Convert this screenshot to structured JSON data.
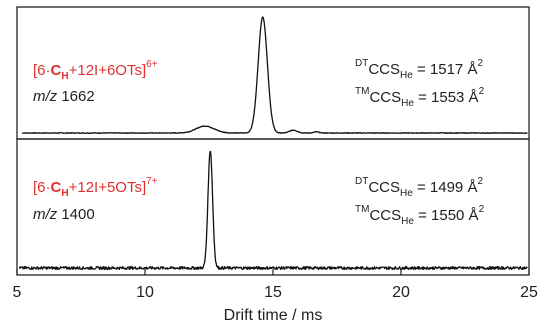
{
  "chart_data": {
    "type": "line",
    "xlabel": "Drift time / ms",
    "xlim": [
      5,
      25
    ],
    "x_ticks": [
      "5",
      "10",
      "15",
      "20",
      "25"
    ],
    "grid": false,
    "panels": [
      {
        "ion": {
          "prefix": "[6·",
          "bold": "C",
          "bold_sub": "H",
          "rest": "+12I+6OTs]",
          "charge": "6+"
        },
        "mz": {
          "italic": "m/z",
          "value": "1662"
        },
        "ccs": [
          {
            "pre": "DT",
            "main": "CCS",
            "sub": "He",
            "eq": " = 1517 Å",
            "exp": "2"
          },
          {
            "pre": "TM",
            "main": "CCS",
            "sub": "He",
            "eq": " = 1553 Å",
            "exp": "2"
          }
        ],
        "baseline_start_x": 5.2,
        "series": [
          {
            "peaks": [
              {
                "center": 14.6,
                "height": 1.0,
                "width": 0.18
              },
              {
                "center": 12.35,
                "height": 0.06,
                "width": 0.35
              },
              {
                "center": 15.8,
                "height": 0.025,
                "width": 0.15
              },
              {
                "center": 16.7,
                "height": 0.01,
                "width": 0.1
              }
            ],
            "noise": 0.003
          }
        ]
      },
      {
        "ion": {
          "prefix": "[6·",
          "bold": "C",
          "bold_sub": "H",
          "rest": "+12I+5OTs]",
          "charge": "7+"
        },
        "mz": {
          "italic": "m/z",
          "value": "1400"
        },
        "ccs": [
          {
            "pre": "DT",
            "main": "CCS",
            "sub": "He",
            "eq": " = 1499 Å",
            "exp": "2"
          },
          {
            "pre": "TM",
            "main": "CCS",
            "sub": "He",
            "eq": " = 1550 Å",
            "exp": "2"
          }
        ],
        "baseline_start_x": 5.1,
        "series": [
          {
            "peaks": [
              {
                "center": 12.55,
                "height": 1.0,
                "width": 0.09
              }
            ],
            "noise": 0.012
          }
        ]
      }
    ]
  }
}
